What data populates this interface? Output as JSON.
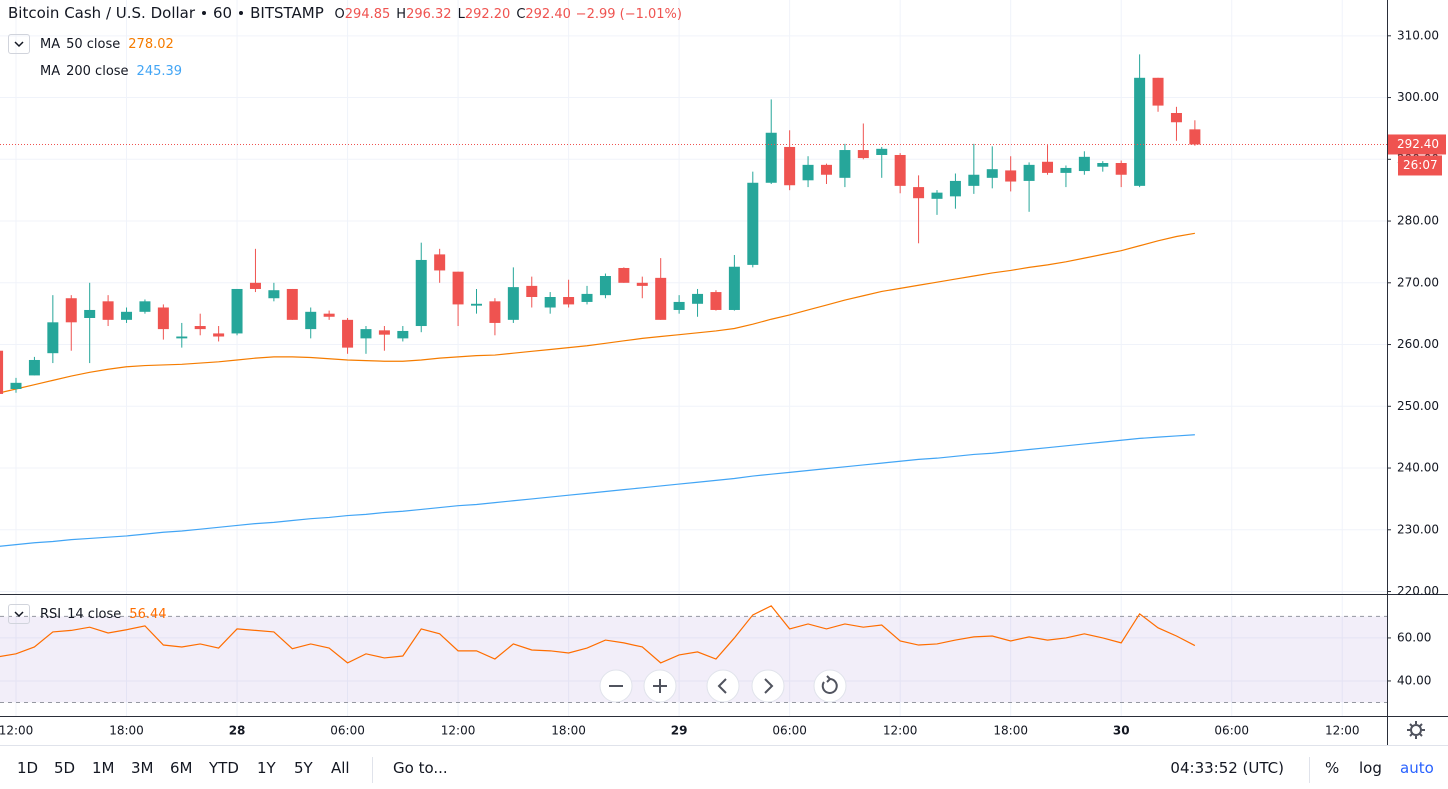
{
  "chart_data": [
    {
      "type": "candlestick",
      "title": "Bitcoin Cash / U.S. Dollar",
      "interval": "60",
      "exchange": "BITSTAMP",
      "legend_ohlc": [
        {
          "label": "O",
          "value": 294.85
        },
        {
          "label": "H",
          "value": 296.32
        },
        {
          "label": "L",
          "value": 292.2,
          "value_label": "292.20"
        },
        {
          "label": "C",
          "value": 292.4,
          "value_label": "292.40"
        }
      ],
      "change": "−2.99 (−1.01%)",
      "categories": [
        null,
        "12:00",
        null,
        null,
        null,
        null,
        null,
        "18:00",
        null,
        null,
        null,
        null,
        null,
        "28",
        null,
        null,
        null,
        null,
        null,
        "06:00",
        null,
        null,
        null,
        null,
        null,
        "12:00",
        null,
        null,
        null,
        null,
        null,
        "18:00",
        null,
        null,
        null,
        null,
        null,
        "29",
        null,
        null,
        null,
        null,
        null,
        "06:00",
        null,
        null,
        null,
        null,
        null,
        "12:00",
        null,
        null,
        null,
        null,
        null,
        "18:00",
        null,
        null,
        null,
        null,
        null,
        "30",
        null,
        null,
        null,
        null,
        null,
        "06:00",
        null,
        null,
        null,
        null,
        null,
        "12:00",
        null,
        null
      ],
      "open": [
        259,
        252.8,
        255,
        258.6,
        267.5,
        264.3,
        267,
        264,
        265.3,
        266,
        261,
        263,
        261.8,
        261.8,
        270,
        267.5,
        269,
        262.5,
        265,
        264,
        261,
        262.3,
        261,
        263,
        274.6,
        271.8,
        266.3,
        267,
        264,
        269.5,
        266,
        267.7,
        266.9,
        268,
        272.4,
        270,
        270.8,
        265.6,
        266.6,
        268.5,
        265.6,
        272.9,
        286.2,
        292,
        286.6,
        289.1,
        287,
        291.5,
        290.7,
        290.7,
        285.5,
        283.6,
        284,
        285.7,
        287,
        288.2,
        286.5,
        289.6,
        287.8,
        288.1,
        288.8,
        289.4,
        285.7,
        303.2,
        297.5,
        294.85,
        null,
        null,
        null,
        null,
        null,
        null,
        null,
        null,
        null,
        null
      ],
      "high": [
        259.5,
        254.6,
        258,
        268,
        268,
        270,
        268,
        266,
        267.3,
        266.5,
        263.5,
        265,
        263,
        269,
        275.5,
        270,
        269,
        266,
        265.5,
        264.3,
        263,
        263,
        263,
        276.5,
        275.5,
        271.8,
        269,
        267.5,
        272.5,
        271,
        268.5,
        270.5,
        269.5,
        271.5,
        272.5,
        271,
        274,
        268,
        269,
        268.8,
        274.5,
        288,
        299.7,
        294.7,
        290.5,
        289.3,
        292.5,
        295.8,
        292,
        291,
        287.4,
        285,
        287.7,
        292.5,
        292.1,
        290.5,
        289.5,
        292.3,
        289,
        291.3,
        289.7,
        289.8,
        307,
        303.2,
        298.5,
        296.32,
        null,
        null,
        null,
        null,
        null,
        null,
        null,
        null,
        null,
        null
      ],
      "low": [
        251.5,
        252.2,
        255,
        257,
        259,
        257,
        263,
        263.5,
        265,
        260.8,
        259.5,
        261.5,
        260.5,
        261.5,
        268.5,
        267,
        264,
        261,
        264,
        258.5,
        258.5,
        259,
        260.5,
        262,
        270,
        263,
        265,
        261.5,
        263.5,
        266,
        265,
        266,
        266.5,
        267.5,
        270,
        267.5,
        264,
        265,
        264.5,
        265.5,
        265.5,
        272.5,
        286,
        285,
        285.5,
        286,
        285.5,
        290,
        287,
        284.5,
        276.4,
        281,
        282,
        284.4,
        285.3,
        284.8,
        281.5,
        287.5,
        285.5,
        287.5,
        288,
        285.5,
        285.5,
        297.7,
        293,
        292.2,
        null,
        null,
        null,
        null,
        null,
        null,
        null,
        null,
        null,
        null
      ],
      "close": [
        252,
        253.8,
        257.5,
        263.6,
        263.6,
        265.6,
        264,
        265.3,
        267,
        262.5,
        261.3,
        262.5,
        261.3,
        269,
        269,
        268.8,
        264,
        265.3,
        264.5,
        259.5,
        262.5,
        261.6,
        262.2,
        273.7,
        272,
        266.5,
        266.6,
        263.5,
        269.3,
        267.7,
        267.7,
        266.5,
        268.2,
        271.1,
        270,
        269.5,
        264,
        266.9,
        268.2,
        265.6,
        272.6,
        286.2,
        294.3,
        285.8,
        289.1,
        287.5,
        291.5,
        290.2,
        291.7,
        285.7,
        283.7,
        284.6,
        286.5,
        287.5,
        288.4,
        286.4,
        289.1,
        287.8,
        288.6,
        290.4,
        289.4,
        287.5,
        303.2,
        298.7,
        296,
        292.4,
        null,
        null,
        null,
        null,
        null,
        null,
        null,
        null,
        null,
        null
      ],
      "up_color": "#26a69a",
      "down_color": "#ef5350",
      "series": [
        {
          "name": "MA",
          "params": "50 close",
          "color": "#f57c00",
          "values": [
            252.1,
            252.8,
            253.5,
            254.2,
            254.9,
            255.5,
            256.0,
            256.4,
            256.6,
            256.7,
            256.8,
            257.0,
            257.2,
            257.5,
            257.8,
            258.0,
            258.0,
            257.9,
            257.7,
            257.5,
            257.4,
            257.3,
            257.3,
            257.5,
            257.8,
            258.0,
            258.2,
            258.3,
            258.6,
            258.9,
            259.2,
            259.5,
            259.8,
            260.2,
            260.6,
            261.0,
            261.3,
            261.6,
            261.9,
            262.2,
            262.6,
            263.3,
            264.1,
            264.8,
            265.6,
            266.4,
            267.2,
            267.9,
            268.6,
            269.1,
            269.6,
            270.1,
            270.6,
            271.1,
            271.6,
            272.0,
            272.5,
            272.9,
            273.4,
            274.0,
            274.6,
            275.2,
            276.0,
            276.8,
            277.5,
            278.02,
            null,
            null,
            null,
            null,
            null,
            null,
            null,
            null,
            null,
            null
          ]
        },
        {
          "name": "MA",
          "params": "200 close",
          "color": "#42a5f5",
          "values": [
            227.3,
            227.6,
            227.9,
            228.1,
            228.4,
            228.6,
            228.8,
            229.0,
            229.3,
            229.6,
            229.8,
            230.1,
            230.4,
            230.7,
            231.0,
            231.2,
            231.5,
            231.8,
            232.0,
            232.3,
            232.5,
            232.8,
            233.0,
            233.3,
            233.6,
            233.9,
            234.1,
            234.4,
            234.7,
            235.0,
            235.3,
            235.6,
            235.9,
            236.2,
            236.5,
            236.8,
            237.1,
            237.4,
            237.7,
            238.0,
            238.3,
            238.7,
            239.0,
            239.3,
            239.6,
            239.9,
            240.2,
            240.5,
            240.8,
            241.1,
            241.4,
            241.6,
            241.9,
            242.2,
            242.4,
            242.7,
            243.0,
            243.3,
            243.6,
            243.9,
            244.2,
            244.5,
            244.8,
            245.0,
            245.2,
            245.39,
            null,
            null,
            null,
            null,
            null,
            null,
            null,
            null,
            null,
            null
          ]
        }
      ],
      "ylim": [
        219.6,
        315.8
      ],
      "yticks": [
        {
          "value": 220,
          "label": "220.00"
        },
        {
          "value": 230,
          "label": "230.00"
        },
        {
          "value": 240,
          "label": "240.00"
        },
        {
          "value": 250,
          "label": "250.00"
        },
        {
          "value": 260,
          "label": "260.00"
        },
        {
          "value": 270,
          "label": "270.00"
        },
        {
          "value": 280,
          "label": "280.00"
        },
        {
          "value": 290,
          "label": "290.00"
        },
        {
          "value": 300,
          "label": "300.00"
        },
        {
          "value": 310,
          "label": "310.00"
        }
      ],
      "grid": true,
      "last_price": {
        "value": 292.4,
        "label": "292.40"
      },
      "countdown": "26:07"
    },
    {
      "type": "line",
      "title": "RSI",
      "subtitle": "14 close",
      "series": [
        {
          "name": "RSI",
          "color": "#ff6d00",
          "values": [
            51.2,
            52.6,
            55.8,
            62.8,
            63.5,
            65,
            62.3,
            63.8,
            65.6,
            56.7,
            55.8,
            57.2,
            55.3,
            64.2,
            63.5,
            62.8,
            55,
            57.2,
            55.3,
            48.4,
            52.6,
            50.7,
            51.6,
            64.2,
            61.9,
            54,
            54,
            50.2,
            57.2,
            54.4,
            54,
            53,
            55.3,
            59,
            57.7,
            55.8,
            48.4,
            52.1,
            53.5,
            50.2,
            60,
            70.7,
            74.9,
            64.2,
            66.5,
            64.2,
            66.5,
            65,
            66,
            58.6,
            56.7,
            57.2,
            59,
            60.5,
            60.9,
            58.6,
            60.5,
            59,
            60,
            61.9,
            60,
            57.7,
            71.2,
            64.7,
            60.9,
            56.44,
            null,
            null,
            null,
            null,
            null,
            null,
            null,
            null,
            null,
            null
          ]
        }
      ],
      "ylim": [
        23.7,
        79.5
      ],
      "yticks": [
        {
          "value": 40,
          "label": "40.00"
        },
        {
          "value": 60,
          "label": "60.00"
        }
      ],
      "band": [
        30,
        70
      ],
      "band_color": "#7e57c2",
      "grid": true
    }
  ],
  "toolbar": {
    "ranges": [
      "1D",
      "5D",
      "1M",
      "3M",
      "6M",
      "YTD",
      "1Y",
      "5Y",
      "All"
    ],
    "goto": "Go to...",
    "clock": "04:33:52 (UTC)",
    "options": [
      "%",
      "log",
      "auto"
    ]
  }
}
